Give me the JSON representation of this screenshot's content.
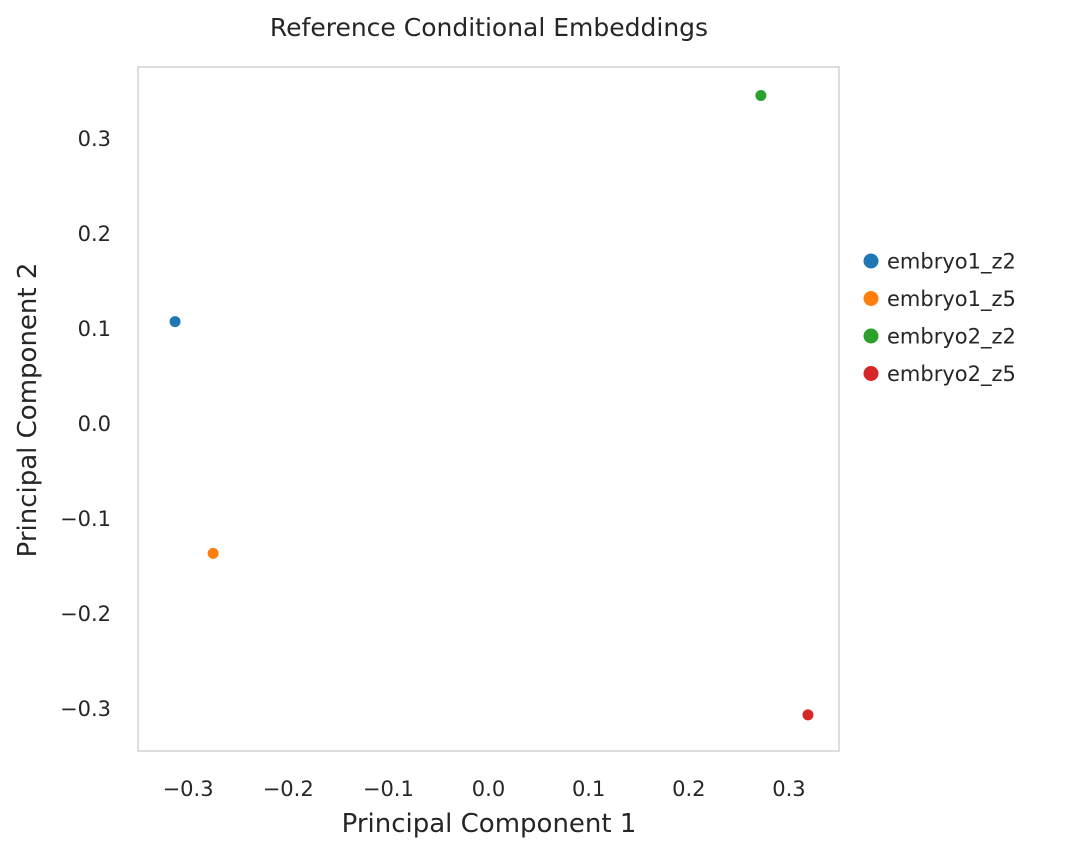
{
  "chart_data": {
    "type": "scatter",
    "title": "Reference Conditional Embeddings",
    "xlabel": "Principal Component 1",
    "ylabel": "Principal Component 2",
    "xlim": [
      -0.35,
      0.35
    ],
    "ylim": [
      -0.345,
      0.375
    ],
    "xticks": [
      -0.3,
      -0.2,
      -0.1,
      0.0,
      0.1,
      0.2,
      0.3
    ],
    "yticks": [
      -0.3,
      -0.2,
      -0.1,
      0.0,
      0.1,
      0.2,
      0.3
    ],
    "xtick_labels": [
      "−0.3",
      "−0.2",
      "−0.1",
      "0.0",
      "0.1",
      "0.2",
      "0.3"
    ],
    "ytick_labels": [
      "−0.3",
      "−0.2",
      "−0.1",
      "0.0",
      "0.1",
      "0.2",
      "0.3"
    ],
    "grid": false,
    "legend_position": "right-outside",
    "series": [
      {
        "name": "embryo1_z2",
        "color": "#1f77b4",
        "x": [
          -0.313
        ],
        "y": [
          0.107
        ]
      },
      {
        "name": "embryo1_z5",
        "color": "#ff7f0e",
        "x": [
          -0.275
        ],
        "y": [
          -0.137
        ]
      },
      {
        "name": "embryo2_z2",
        "color": "#2ca02c",
        "x": [
          0.272
        ],
        "y": [
          0.345
        ]
      },
      {
        "name": "embryo2_z5",
        "color": "#d62728",
        "x": [
          0.319
        ],
        "y": [
          -0.307
        ]
      }
    ]
  }
}
